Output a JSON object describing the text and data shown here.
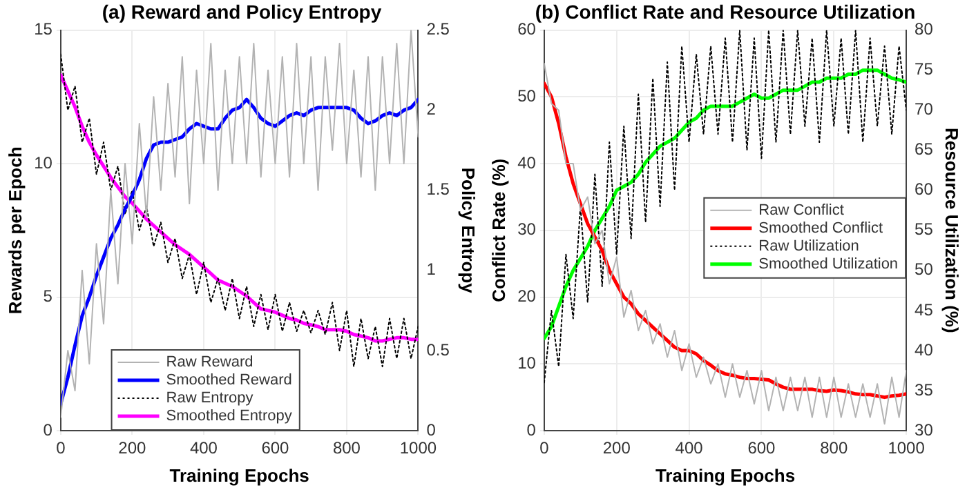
{
  "chart_data": [
    {
      "type": "line",
      "title": "(a) Reward and Policy Entropy",
      "xlabel": "Training Epochs",
      "ylabel": "Rewards per Epoch",
      "y2label": "Policy Entropy",
      "x": [
        0,
        20,
        40,
        60,
        80,
        100,
        120,
        140,
        160,
        180,
        200,
        220,
        240,
        260,
        280,
        300,
        320,
        340,
        360,
        380,
        400,
        420,
        440,
        460,
        480,
        500,
        520,
        540,
        560,
        580,
        600,
        620,
        640,
        660,
        680,
        700,
        720,
        740,
        760,
        780,
        800,
        820,
        840,
        860,
        880,
        900,
        920,
        940,
        960,
        980,
        1000
      ],
      "xlim": [
        0,
        1000
      ],
      "xticks": [
        0,
        200,
        400,
        600,
        800,
        1000
      ],
      "ylim": [
        0,
        15
      ],
      "yticks": [
        0,
        5,
        10,
        15
      ],
      "y2lim": [
        0,
        2.5
      ],
      "y2ticks": [
        0,
        0.5,
        1,
        1.5,
        2,
        2.5
      ],
      "grid": true,
      "legend": "bottom",
      "series": [
        {
          "name": "Raw Reward",
          "color": "#b3b3b3",
          "line_style": "solid",
          "values": [
            0.5,
            3,
            1.5,
            6,
            2.5,
            7,
            4,
            9,
            5.5,
            10,
            7,
            11.5,
            8,
            12.5,
            9,
            13,
            9.5,
            14,
            8.5,
            13.5,
            10,
            14.5,
            9,
            13.5,
            10,
            14,
            10,
            14.5,
            9.5,
            13.5,
            10,
            14,
            9.5,
            14.5,
            10,
            14,
            9,
            14,
            10.5,
            14.5,
            10,
            13.5,
            9.5,
            14,
            9,
            14,
            10,
            14.5,
            10,
            15,
            11
          ]
        },
        {
          "name": "Smoothed Reward",
          "color": "#0000ff",
          "line_style": "solid",
          "values": [
            1,
            2,
            3.2,
            4.3,
            5,
            5.8,
            6.5,
            7.2,
            7.7,
            8.3,
            8.8,
            9.4,
            10.2,
            10.7,
            10.8,
            10.8,
            10.9,
            11,
            11.3,
            11.5,
            11.4,
            11.3,
            11.3,
            11.7,
            12,
            12.1,
            12.4,
            12.1,
            11.7,
            11.5,
            11.4,
            11.6,
            11.8,
            11.9,
            11.8,
            12,
            12.1,
            12.1,
            12.1,
            12.1,
            12.1,
            12,
            11.7,
            11.5,
            11.6,
            11.8,
            11.9,
            11.8,
            12,
            12.1,
            12.4
          ]
        },
        {
          "name": "Raw Entropy",
          "color": "#000000",
          "line_style": "dotted",
          "axis": "y2",
          "values": [
            2.35,
            2,
            2.15,
            1.8,
            1.95,
            1.6,
            1.8,
            1.5,
            1.65,
            1.35,
            1.5,
            1.25,
            1.4,
            1.15,
            1.3,
            1.05,
            1.2,
            0.95,
            1.1,
            0.85,
            1.05,
            0.8,
            0.95,
            0.75,
            0.95,
            0.7,
            0.9,
            0.65,
            0.85,
            0.63,
            0.85,
            0.62,
            0.8,
            0.62,
            0.75,
            0.61,
            0.75,
            0.6,
            0.8,
            0.5,
            0.75,
            0.4,
            0.7,
            0.45,
            0.65,
            0.4,
            0.7,
            0.45,
            0.7,
            0.45,
            0.65
          ]
        },
        {
          "name": "Smoothed Entropy",
          "color": "#ff00ff",
          "line_style": "solid",
          "axis": "y2",
          "values": [
            2.22,
            2.12,
            2.02,
            1.9,
            1.8,
            1.72,
            1.65,
            1.58,
            1.52,
            1.46,
            1.42,
            1.37,
            1.32,
            1.28,
            1.24,
            1.2,
            1.16,
            1.13,
            1.1,
            1.06,
            1.02,
            0.98,
            0.94,
            0.92,
            0.9,
            0.87,
            0.84,
            0.8,
            0.76,
            0.75,
            0.74,
            0.72,
            0.7,
            0.69,
            0.67,
            0.66,
            0.65,
            0.63,
            0.63,
            0.63,
            0.62,
            0.6,
            0.59,
            0.58,
            0.56,
            0.56,
            0.57,
            0.58,
            0.58,
            0.57,
            0.57
          ]
        }
      ]
    },
    {
      "type": "line",
      "title": "(b) Conflict Rate and Resource Utilization",
      "xlabel": "Training Epochs",
      "ylabel": "Conflict Rate (%)",
      "y2label": "Resource Utilization (%)",
      "x": [
        0,
        20,
        40,
        60,
        80,
        100,
        120,
        140,
        160,
        180,
        200,
        220,
        240,
        260,
        280,
        300,
        320,
        340,
        360,
        380,
        400,
        420,
        440,
        460,
        480,
        500,
        520,
        540,
        560,
        580,
        600,
        620,
        640,
        660,
        680,
        700,
        720,
        740,
        760,
        780,
        800,
        820,
        840,
        860,
        880,
        900,
        920,
        940,
        960,
        980,
        1000
      ],
      "xlim": [
        0,
        1000
      ],
      "xticks": [
        0,
        200,
        400,
        600,
        800,
        1000
      ],
      "ylim": [
        0,
        60
      ],
      "yticks": [
        0,
        10,
        20,
        30,
        40,
        50,
        60
      ],
      "y2lim": [
        30,
        80
      ],
      "y2ticks": [
        30,
        35,
        40,
        45,
        50,
        55,
        60,
        65,
        70,
        75,
        80
      ],
      "grid": true,
      "legend": "right",
      "series": [
        {
          "name": "Raw Conflict",
          "color": "#b3b3b3",
          "line_style": "solid",
          "values": [
            55,
            49,
            48,
            40,
            40,
            33,
            35,
            28,
            30,
            22,
            26,
            17,
            21,
            15,
            18,
            13,
            16,
            11,
            15,
            9,
            13,
            8,
            11,
            7,
            10,
            5,
            10,
            5,
            9,
            4,
            9,
            3,
            8,
            3,
            8,
            3,
            8,
            2,
            8,
            2,
            8,
            2,
            7,
            2,
            7,
            2,
            7,
            1,
            8,
            2,
            9
          ]
        },
        {
          "name": "Smoothed Conflict",
          "color": "#ff0000",
          "line_style": "solid",
          "values": [
            52,
            50,
            46,
            41,
            37,
            34,
            31,
            29,
            27,
            24,
            22,
            20,
            19,
            17.5,
            16.5,
            15.5,
            14.5,
            13.5,
            12.5,
            12,
            12,
            11.5,
            10.5,
            9.8,
            9,
            8.5,
            8.3,
            8,
            7.8,
            7.8,
            7.7,
            7.6,
            7,
            6.5,
            6.2,
            6.2,
            6.2,
            6.2,
            6,
            5.9,
            6.1,
            6,
            5.8,
            5.5,
            5.4,
            5.4,
            5.2,
            5,
            5.2,
            5.3,
            5.5
          ]
        },
        {
          "name": "Raw Utilization",
          "color": "#000000",
          "line_style": "dotted",
          "axis": "y2",
          "values": [
            36,
            45,
            38,
            52,
            44,
            58,
            46,
            62,
            48,
            66,
            52,
            68,
            54,
            72,
            56,
            74,
            58,
            76,
            60,
            78,
            66,
            77,
            67,
            78,
            67,
            79,
            66,
            80,
            65,
            79,
            64,
            80,
            66,
            80,
            67,
            80,
            68,
            79,
            66,
            80,
            68,
            79,
            67,
            80,
            66,
            79,
            68,
            78,
            67,
            78,
            70
          ]
        },
        {
          "name": "Smoothed Utilization",
          "color": "#00ff00",
          "line_style": "solid",
          "axis": "y2",
          "values": [
            41.5,
            43,
            45.5,
            48,
            50,
            51.5,
            53,
            55,
            56.5,
            58,
            60,
            60.5,
            61,
            62,
            63.5,
            64.5,
            65.5,
            66,
            66.5,
            67.5,
            68.5,
            69,
            70,
            70.5,
            70.5,
            70.5,
            70.5,
            71,
            71.5,
            72,
            71.5,
            71.5,
            72,
            72.5,
            72.5,
            72.5,
            73,
            73.5,
            73.5,
            74,
            74,
            74,
            74.5,
            74.5,
            75,
            75,
            75,
            74.5,
            74,
            73.8,
            73.5
          ]
        }
      ]
    }
  ]
}
